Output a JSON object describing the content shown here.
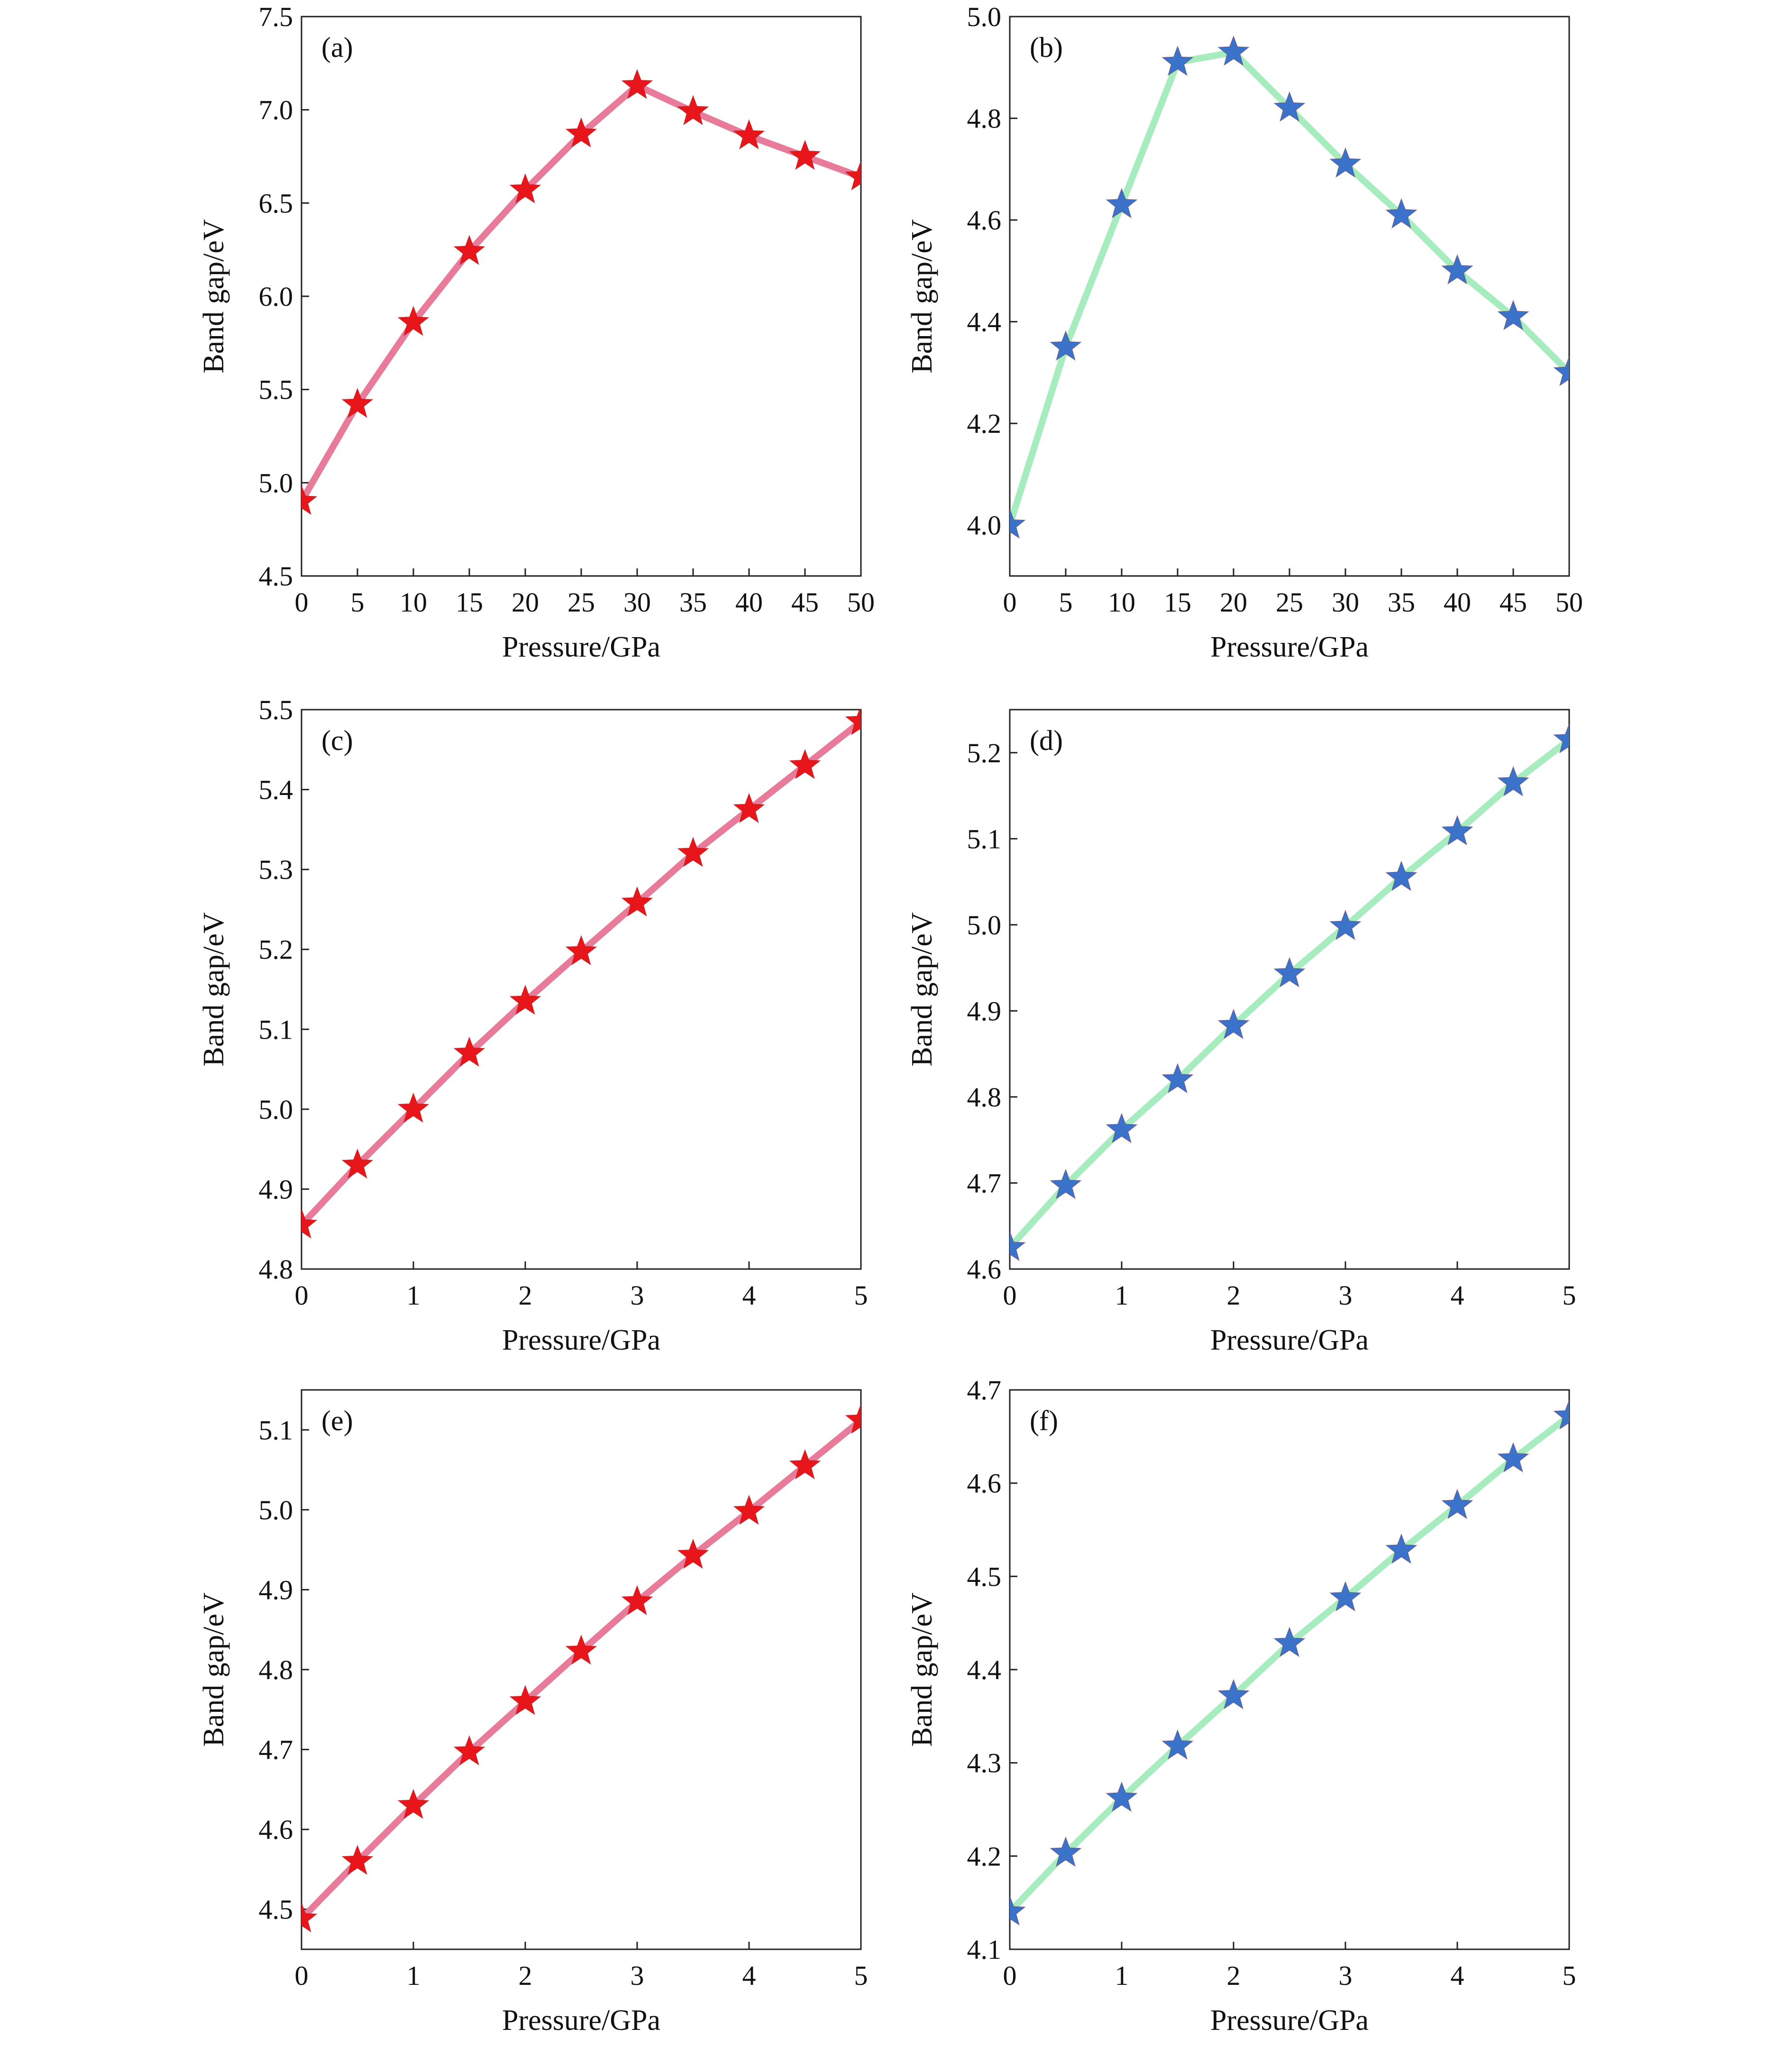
{
  "colors": {
    "red_marker": "#e8161b",
    "red_line": "#e87a9a",
    "blue_marker": "#3a73c9",
    "green_line": "#a6ecbf"
  },
  "chart_data": [
    {
      "type": "line",
      "panel": "(a)",
      "xlabel": "Pressure/GPa",
      "ylabel": "Band gap/eV",
      "xlim": [
        0,
        50
      ],
      "ylim": [
        4.5,
        7.5
      ],
      "xticks": [
        "0",
        "5",
        "10",
        "15",
        "20",
        "25",
        "30",
        "35",
        "40",
        "45",
        "50"
      ],
      "yticks": [
        "4.5",
        "5.0",
        "5.5",
        "6.0",
        "6.5",
        "7.0",
        "7.5"
      ],
      "marker_color": "#e8161b",
      "line_color": "#e87a9a",
      "x": [
        0,
        5,
        10,
        15,
        20,
        25,
        30,
        35,
        40,
        45,
        50
      ],
      "y": [
        4.9,
        5.42,
        5.86,
        6.24,
        6.57,
        6.87,
        7.13,
        6.99,
        6.86,
        6.75,
        6.64
      ]
    },
    {
      "type": "line",
      "panel": "(b)",
      "xlabel": "Pressure/GPa",
      "ylabel": "Band gap/eV",
      "xlim": [
        0,
        50
      ],
      "ylim": [
        3.9,
        5.0
      ],
      "xticks": [
        "0",
        "5",
        "10",
        "15",
        "20",
        "25",
        "30",
        "35",
        "40",
        "45",
        "50"
      ],
      "yticks": [
        "4.0",
        "4.2",
        "4.4",
        "4.6",
        "4.8",
        "5.0"
      ],
      "marker_color": "#3a73c9",
      "line_color": "#a6ecbf",
      "x": [
        0,
        5,
        10,
        15,
        20,
        25,
        30,
        35,
        40,
        45,
        50
      ],
      "y": [
        4.0,
        4.35,
        4.63,
        4.91,
        4.93,
        4.82,
        4.71,
        4.61,
        4.5,
        4.41,
        4.3
      ]
    },
    {
      "type": "line",
      "panel": "(c)",
      "xlabel": "Pressure/GPa",
      "ylabel": "Band gap/eV",
      "xlim": [
        0,
        5
      ],
      "ylim": [
        4.8,
        5.5
      ],
      "xticks": [
        "0",
        "1",
        "2",
        "3",
        "4",
        "5"
      ],
      "yticks": [
        "4.8",
        "4.9",
        "5.0",
        "5.1",
        "5.2",
        "5.3",
        "5.4",
        "5.5"
      ],
      "marker_color": "#e8161b",
      "line_color": "#e87a9a",
      "x": [
        0,
        0.5,
        1,
        1.5,
        2,
        2.5,
        3,
        3.5,
        4,
        4.5,
        5
      ],
      "y": [
        4.855,
        4.93,
        5.0,
        5.07,
        5.135,
        5.197,
        5.258,
        5.32,
        5.375,
        5.43,
        5.485
      ]
    },
    {
      "type": "line",
      "panel": "(d)",
      "xlabel": "Pressure/GPa",
      "ylabel": "Band gap/eV",
      "xlim": [
        0,
        5
      ],
      "ylim": [
        4.6,
        5.25
      ],
      "xticks": [
        "0",
        "1",
        "2",
        "3",
        "4",
        "5"
      ],
      "yticks": [
        "4.6",
        "4.7",
        "4.8",
        "4.9",
        "5.0",
        "5.1",
        "5.2"
      ],
      "marker_color": "#3a73c9",
      "line_color": "#a6ecbf",
      "x": [
        0,
        0.5,
        1,
        1.5,
        2,
        2.5,
        3,
        3.5,
        4,
        4.5,
        5
      ],
      "y": [
        4.625,
        4.697,
        4.762,
        4.82,
        4.883,
        4.943,
        4.998,
        5.055,
        5.108,
        5.165,
        5.215
      ]
    },
    {
      "type": "line",
      "panel": "(e)",
      "xlabel": "Pressure/GPa",
      "ylabel": "Band gap/eV",
      "xlim": [
        0,
        5
      ],
      "ylim": [
        4.45,
        5.15
      ],
      "xticks": [
        "0",
        "1",
        "2",
        "3",
        "4",
        "5"
      ],
      "yticks": [
        "4.5",
        "4.6",
        "4.7",
        "4.8",
        "4.9",
        "5.0",
        "5.1"
      ],
      "marker_color": "#e8161b",
      "line_color": "#e87a9a",
      "x": [
        0,
        0.5,
        1,
        1.5,
        2,
        2.5,
        3,
        3.5,
        4,
        4.5,
        5
      ],
      "y": [
        4.488,
        4.56,
        4.63,
        4.697,
        4.76,
        4.823,
        4.885,
        4.943,
        4.998,
        5.055,
        5.112
      ]
    },
    {
      "type": "line",
      "panel": "(f)",
      "xlabel": "Pressure/GPa",
      "ylabel": "Band gap/eV",
      "xlim": [
        0,
        5
      ],
      "ylim": [
        4.1,
        4.7
      ],
      "xticks": [
        "0",
        "1",
        "2",
        "3",
        "4",
        "5"
      ],
      "yticks": [
        "4.1",
        "4.2",
        "4.3",
        "4.4",
        "4.5",
        "4.6",
        "4.7"
      ],
      "marker_color": "#3a73c9",
      "line_color": "#a6ecbf",
      "x": [
        0,
        0.5,
        1,
        1.5,
        2,
        2.5,
        3,
        3.5,
        4,
        4.5,
        5
      ],
      "y": [
        4.14,
        4.203,
        4.262,
        4.318,
        4.372,
        4.428,
        4.477,
        4.528,
        4.576,
        4.626,
        4.672
      ]
    }
  ]
}
